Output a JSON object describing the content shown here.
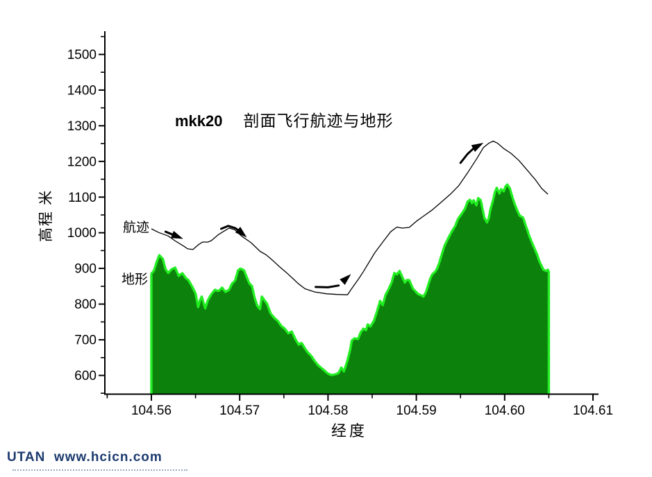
{
  "title": {
    "prefix": "mkk20",
    "cn": "剖面飞行航迹与地形"
  },
  "axes": {
    "y": {
      "label": "高程 米",
      "tick_labels": [
        "600",
        "700",
        "800",
        "900",
        "1000",
        "1100",
        "1200",
        "1300",
        "1400",
        "1500"
      ]
    },
    "x": {
      "label": "经度",
      "tick_labels": [
        "104.56",
        "104.57",
        "104.58",
        "104.59",
        "104.60",
        "104.61"
      ]
    }
  },
  "annotations": {
    "flight_label": "航迹",
    "terrain_label": "地形"
  },
  "watermark": {
    "text": "UTAN  www.hcicn.com",
    "color": "#1c3a6e"
  },
  "colors": {
    "terrain_fill": "#0a7c0a",
    "terrain_fill_alt": "#0e870e",
    "terrain_edge": "#21ee21",
    "flight_line": "#000000",
    "axis": "#000000"
  },
  "chart_data": {
    "type": "area",
    "title": "mkk20 剖面飞行航迹与地形",
    "xlabel": "经度",
    "ylabel": "高程 米",
    "xlim": [
      104.5545,
      104.6105
    ],
    "ylim": [
      550,
      1563
    ],
    "grid": false,
    "legend_position": "inline-labels",
    "x_major_ticks": [
      104.56,
      104.57,
      104.58,
      104.59,
      104.6,
      104.61
    ],
    "x_minor_ticks": [
      104.555,
      104.565,
      104.575,
      104.585,
      104.595,
      104.605
    ],
    "y_major_ticks": [
      600,
      700,
      800,
      900,
      1000,
      1100,
      1200,
      1300,
      1400,
      1500
    ],
    "y_minor_ticks": [
      550,
      650,
      750,
      850,
      950,
      1050,
      1150,
      1250,
      1350,
      1450,
      1550
    ],
    "series": [
      {
        "name": "地形",
        "type": "area",
        "points": [
          [
            104.56,
            885
          ],
          [
            104.5603,
            894
          ],
          [
            104.5606,
            918
          ],
          [
            104.5609,
            937
          ],
          [
            104.5613,
            927
          ],
          [
            104.5616,
            898
          ],
          [
            104.5619,
            887
          ],
          [
            104.5623,
            898
          ],
          [
            104.5627,
            902
          ],
          [
            104.5631,
            879
          ],
          [
            104.5635,
            887
          ],
          [
            104.5639,
            873
          ],
          [
            104.5642,
            867
          ],
          [
            104.5646,
            850
          ],
          [
            104.565,
            830
          ],
          [
            104.5653,
            791
          ],
          [
            104.5655,
            811
          ],
          [
            104.5657,
            821
          ],
          [
            104.5661,
            788
          ],
          [
            104.5664,
            811
          ],
          [
            104.5668,
            828
          ],
          [
            104.5672,
            840
          ],
          [
            104.5676,
            836
          ],
          [
            104.568,
            846
          ],
          [
            104.5684,
            834
          ],
          [
            104.5688,
            840
          ],
          [
            104.5691,
            856
          ],
          [
            104.5695,
            867
          ],
          [
            104.5698,
            894
          ],
          [
            104.5701,
            900
          ],
          [
            104.5705,
            894
          ],
          [
            104.5708,
            875
          ],
          [
            104.5711,
            858
          ],
          [
            104.5714,
            850
          ],
          [
            104.5717,
            817
          ],
          [
            104.572,
            795
          ],
          [
            104.5723,
            786
          ],
          [
            104.5725,
            821
          ],
          [
            104.5728,
            811
          ],
          [
            104.5731,
            801
          ],
          [
            104.5735,
            774
          ],
          [
            104.5739,
            762
          ],
          [
            104.5743,
            753
          ],
          [
            104.5747,
            739
          ],
          [
            104.5751,
            731
          ],
          [
            104.5755,
            718
          ],
          [
            104.5759,
            723
          ],
          [
            104.5763,
            702
          ],
          [
            104.5767,
            686
          ],
          [
            104.577,
            692
          ],
          [
            104.5773,
            679
          ],
          [
            104.5777,
            665
          ],
          [
            104.5781,
            655
          ],
          [
            104.5785,
            640
          ],
          [
            104.5789,
            628
          ],
          [
            104.5793,
            620
          ],
          [
            104.5797,
            611
          ],
          [
            104.58,
            605
          ],
          [
            104.5804,
            601
          ],
          [
            104.5808,
            603
          ],
          [
            104.5812,
            607
          ],
          [
            104.5815,
            622
          ],
          [
            104.5818,
            611
          ],
          [
            104.5822,
            642
          ],
          [
            104.5825,
            671
          ],
          [
            104.5827,
            698
          ],
          [
            104.583,
            704
          ],
          [
            104.5834,
            702
          ],
          [
            104.5837,
            721
          ],
          [
            104.584,
            731
          ],
          [
            104.5843,
            727
          ],
          [
            104.5845,
            743
          ],
          [
            104.5848,
            737
          ],
          [
            104.5852,
            753
          ],
          [
            104.5855,
            776
          ],
          [
            104.5859,
            809
          ],
          [
            104.5862,
            797
          ],
          [
            104.5865,
            825
          ],
          [
            104.5869,
            844
          ],
          [
            104.5872,
            860
          ],
          [
            104.5875,
            887
          ],
          [
            104.5878,
            883
          ],
          [
            104.5881,
            893
          ],
          [
            104.5884,
            877
          ],
          [
            104.5887,
            860
          ],
          [
            104.5889,
            867
          ],
          [
            104.5892,
            867
          ],
          [
            104.5896,
            844
          ],
          [
            104.5899,
            836
          ],
          [
            104.5902,
            828
          ],
          [
            104.5905,
            825
          ],
          [
            104.5908,
            821
          ],
          [
            104.5911,
            834
          ],
          [
            104.5914,
            858
          ],
          [
            104.5916,
            873
          ],
          [
            104.5918,
            883
          ],
          [
            104.5922,
            893
          ],
          [
            104.5924,
            902
          ],
          [
            104.5926,
            916
          ],
          [
            104.5929,
            941
          ],
          [
            104.5932,
            964
          ],
          [
            104.5936,
            984
          ],
          [
            104.594,
            1003
          ],
          [
            104.5944,
            1019
          ],
          [
            104.5947,
            1038
          ],
          [
            104.5951,
            1052
          ],
          [
            104.5955,
            1067
          ],
          [
            104.5958,
            1087
          ],
          [
            104.5961,
            1093
          ],
          [
            104.5963,
            1083
          ],
          [
            104.5965,
            1091
          ],
          [
            104.5968,
            1077
          ],
          [
            104.597,
            1097
          ],
          [
            104.5973,
            1091
          ],
          [
            104.5975,
            1066
          ],
          [
            104.5977,
            1042
          ],
          [
            104.598,
            1029
          ],
          [
            104.5982,
            1040
          ],
          [
            104.5984,
            1066
          ],
          [
            104.5987,
            1093
          ],
          [
            104.5989,
            1114
          ],
          [
            104.5991,
            1126
          ],
          [
            104.5994,
            1110
          ],
          [
            104.5996,
            1122
          ],
          [
            104.5999,
            1116
          ],
          [
            104.6001,
            1130
          ],
          [
            104.6003,
            1135
          ],
          [
            104.6006,
            1124
          ],
          [
            104.6008,
            1106
          ],
          [
            104.6011,
            1083
          ],
          [
            104.6014,
            1064
          ],
          [
            104.6017,
            1048
          ],
          [
            104.6021,
            1042
          ],
          [
            104.6024,
            1019
          ],
          [
            104.6026,
            1005
          ],
          [
            104.6028,
            990
          ],
          [
            104.6032,
            966
          ],
          [
            104.6035,
            949
          ],
          [
            104.6037,
            937
          ],
          [
            104.6039,
            922
          ],
          [
            104.6042,
            906
          ],
          [
            104.6044,
            896
          ],
          [
            104.6047,
            893
          ],
          [
            104.6049,
            896
          ],
          [
            104.605,
            890
          ]
        ]
      },
      {
        "name": "航迹",
        "type": "line",
        "points": [
          [
            104.56,
            1011
          ],
          [
            104.5608,
            1001
          ],
          [
            104.5619,
            991
          ],
          [
            104.5627,
            977
          ],
          [
            104.5637,
            962
          ],
          [
            104.5641,
            955
          ],
          [
            104.5647,
            953
          ],
          [
            104.5653,
            966
          ],
          [
            104.5658,
            974
          ],
          [
            104.5664,
            974
          ],
          [
            104.5668,
            978
          ],
          [
            104.5676,
            995
          ],
          [
            104.5684,
            1007
          ],
          [
            104.5688,
            1013
          ],
          [
            104.5694,
            1009
          ],
          [
            104.5702,
            991
          ],
          [
            104.5713,
            972
          ],
          [
            104.5723,
            948
          ],
          [
            104.573,
            938
          ],
          [
            104.5738,
            921
          ],
          [
            104.5745,
            905
          ],
          [
            104.5753,
            888
          ],
          [
            104.5761,
            870
          ],
          [
            104.5766,
            858
          ],
          [
            104.5774,
            843
          ],
          [
            104.5785,
            834
          ],
          [
            104.5798,
            829
          ],
          [
            104.581,
            827
          ],
          [
            104.5822,
            826
          ],
          [
            104.5827,
            844
          ],
          [
            104.5835,
            872
          ],
          [
            104.584,
            891
          ],
          [
            104.5853,
            944
          ],
          [
            104.5863,
            977
          ],
          [
            104.5871,
            1003
          ],
          [
            104.5878,
            1016
          ],
          [
            104.5884,
            1013
          ],
          [
            104.5892,
            1015
          ],
          [
            104.59,
            1032
          ],
          [
            104.5909,
            1048
          ],
          [
            104.5918,
            1064
          ],
          [
            104.5927,
            1083
          ],
          [
            104.5939,
            1109
          ],
          [
            104.5948,
            1132
          ],
          [
            104.5958,
            1168
          ],
          [
            104.5968,
            1206
          ],
          [
            104.5976,
            1239
          ],
          [
            104.5982,
            1251
          ],
          [
            104.5987,
            1257
          ],
          [
            104.5992,
            1251
          ],
          [
            104.5999,
            1236
          ],
          [
            104.6007,
            1223
          ],
          [
            104.6016,
            1203
          ],
          [
            104.6025,
            1177
          ],
          [
            104.6035,
            1148
          ],
          [
            104.6042,
            1124
          ],
          [
            104.6049,
            1108
          ]
        ]
      }
    ],
    "arrows": [
      {
        "tail": [
          [
            104.5616,
            1003
          ],
          [
            104.5624,
            995
          ],
          [
            104.563,
            989
          ]
        ],
        "tip": [
          104.5636,
          983
        ]
      },
      {
        "tail": [
          [
            104.5679,
            1011
          ],
          [
            104.5687,
            1019
          ],
          [
            104.5695,
            1013
          ],
          [
            104.57,
            1004
          ]
        ],
        "tip": [
          104.5708,
          987
        ]
      },
      {
        "tail": [
          [
            104.5786,
            848
          ],
          [
            104.58,
            847
          ],
          [
            104.5812,
            852
          ]
        ],
        "tip": [
          104.5826,
          884
        ]
      },
      {
        "tail": [
          [
            104.595,
            1196
          ],
          [
            104.5958,
            1221
          ],
          [
            104.5965,
            1237
          ]
        ],
        "tip": [
          104.5976,
          1252
        ]
      }
    ]
  }
}
